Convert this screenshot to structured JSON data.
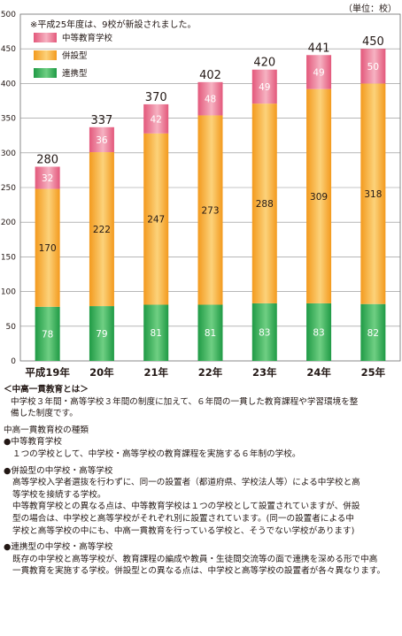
{
  "unit": "（単位：校）",
  "chart_data": {
    "type": "bar",
    "stacked": true,
    "categories": [
      "平成19年",
      "20年",
      "21年",
      "22年",
      "23年",
      "24年",
      "25年"
    ],
    "series": [
      {
        "name": "連携型",
        "color": "#3cb35a",
        "values": [
          78,
          79,
          81,
          81,
          83,
          83,
          82
        ]
      },
      {
        "name": "併設型",
        "color": "#f7a937",
        "values": [
          170,
          222,
          247,
          273,
          288,
          309,
          318
        ]
      },
      {
        "name": "中等教育学校",
        "color": "#ea6f8c",
        "values": [
          32,
          36,
          42,
          48,
          49,
          49,
          50
        ]
      }
    ],
    "totals": [
      280,
      337,
      370,
      402,
      420,
      441,
      450
    ],
    "ylim": [
      0,
      500
    ],
    "yticks": [
      0,
      50,
      100,
      150,
      200,
      250,
      300,
      350,
      400,
      450,
      500
    ],
    "note": "※平成25年度は、9校が新設されました。",
    "legend_position": "top-left"
  },
  "notes": {
    "heading": "＜中高一貫教育とは＞",
    "intro1": "中学校３年間・高等学校３年間の制度に加えて、６年間の一貫した教育課程や学習環境を整",
    "intro2": "備した制度です。",
    "types_title": "中高一貫教育校の種類",
    "t1_title": "●中等教育学校",
    "t1_l1": "１つの学校として、中学校・高等学校の教育課程を実施する６年制の学校。",
    "t2_title": "●併設型の中学校・高等学校",
    "t2_l1": "高等学校入学者選抜を行わずに、同一の設置者（都道府県、学校法人等）による中学校と高",
    "t2_l2": "等学校を接続する学校。",
    "t2_l3": "中等教育学校との異なる点は、中等教育学校は１つの学校として設置されていますが、併設",
    "t2_l4": "型の場合は、中学校と高等学校がそれぞれ別に設置されています。(同一の設置者による中",
    "t2_l5": "学校と高等学校の中にも、中高一貫教育を行っている学校と、そうでない学校があります)",
    "t3_title": "●連携型の中学校・高等学校",
    "t3_l1": "既存の中学校と高等学校が、教育課程の編成や教員・生徒間交流等の面で連携を深める形で中高",
    "t3_l2": "一貫教育を実施する学校。併設型との異なる点は、中学校と高等学校の設置者が各々異なります。"
  }
}
